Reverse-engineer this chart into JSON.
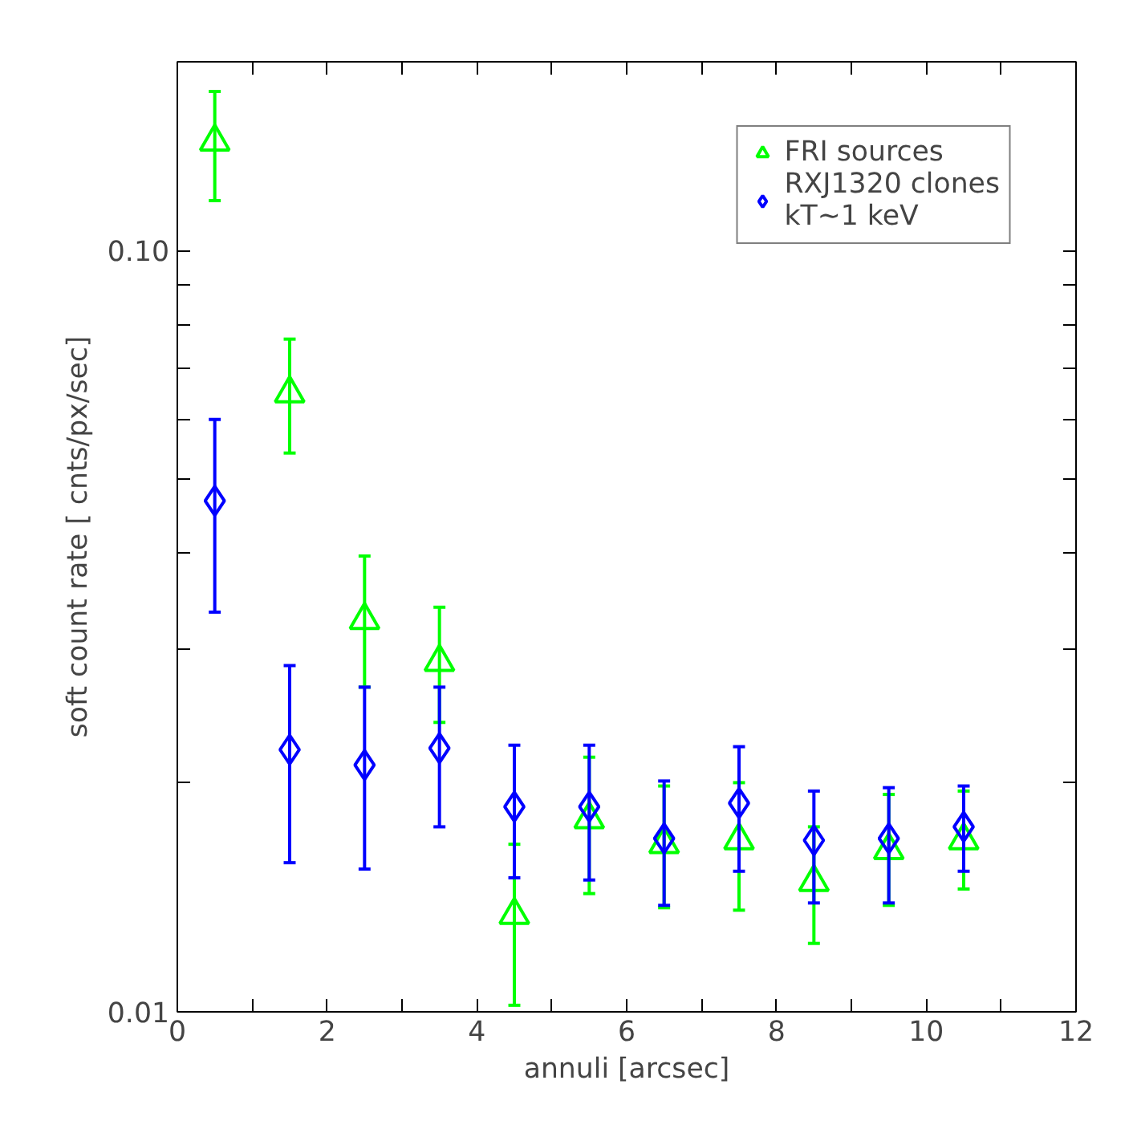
{
  "chart_data": {
    "type": "scatter",
    "xlabel": "annuli [arcsec]",
    "ylabel": "soft count rate [ cnts/px/sec]",
    "log": "y",
    "grid": false,
    "legend": "top right",
    "xlim": [
      0,
      12
    ],
    "ylim": [
      0.01,
      0.177
    ],
    "xticks": [
      0,
      {
        "value": 1,
        "label": null
      },
      2,
      {
        "value": 3,
        "label": null
      },
      4,
      {
        "value": 5,
        "label": null
      },
      6,
      {
        "value": 7,
        "label": null
      },
      8,
      {
        "value": 9,
        "label": null
      },
      10,
      {
        "value": 11,
        "label": null
      },
      12
    ],
    "yticks": [
      {
        "value": 0.01,
        "label": "0.01"
      },
      {
        "value": 0.02,
        "label": null
      },
      {
        "value": 0.03,
        "label": null
      },
      {
        "value": 0.04,
        "label": null
      },
      {
        "value": 0.05,
        "label": null
      },
      {
        "value": 0.06,
        "label": null
      },
      {
        "value": 0.07,
        "label": null
      },
      {
        "value": 0.08,
        "label": null
      },
      {
        "value": 0.09,
        "label": null
      },
      {
        "value": 0.1,
        "label": "0.10"
      }
    ],
    "x": [
      0.5,
      1.5,
      2.5,
      3.5,
      4.5,
      5.5,
      6.5,
      7.5,
      8.5,
      9.5,
      10.5
    ],
    "series": [
      {
        "name": "FRI sources",
        "color": "#00ff00",
        "marker": "triangle",
        "values": [
          0.139,
          0.0649,
          0.0327,
          0.0288,
          0.0134,
          0.0179,
          0.0166,
          0.0168,
          0.0148,
          0.0163,
          0.0168
        ],
        "errors": [
          [
            0.1163,
            0.1618
          ],
          [
            0.0542,
            0.0765
          ],
          [
            0.0267,
            0.0397
          ],
          [
            0.024,
            0.034
          ],
          [
            0.0102,
            0.0166
          ],
          [
            0.0143,
            0.0216
          ],
          [
            0.0137,
            0.0198
          ],
          [
            0.0136,
            0.02
          ],
          [
            0.0123,
            0.0175
          ],
          [
            0.0138,
            0.0193
          ],
          [
            0.0145,
            0.0195
          ]
        ]
      },
      {
        "name": "RXJ1320 clones\nkT~1 keV",
        "color": "#0000ff",
        "marker": "diamond",
        "values": [
          0.0469,
          0.0221,
          0.0211,
          0.0222,
          0.0186,
          0.0186,
          0.0169,
          0.0188,
          0.0168,
          0.0169,
          0.0175
        ],
        "errors": [
          [
            0.0335,
            0.06
          ],
          [
            0.0157,
            0.0285
          ],
          [
            0.0154,
            0.0267
          ],
          [
            0.0175,
            0.0267
          ],
          [
            0.015,
            0.0224
          ],
          [
            0.0149,
            0.0224
          ],
          [
            0.0138,
            0.0201
          ],
          [
            0.0153,
            0.0223
          ],
          [
            0.0139,
            0.0195
          ],
          [
            0.0139,
            0.0197
          ],
          [
            0.0153,
            0.0198
          ]
        ]
      }
    ]
  }
}
